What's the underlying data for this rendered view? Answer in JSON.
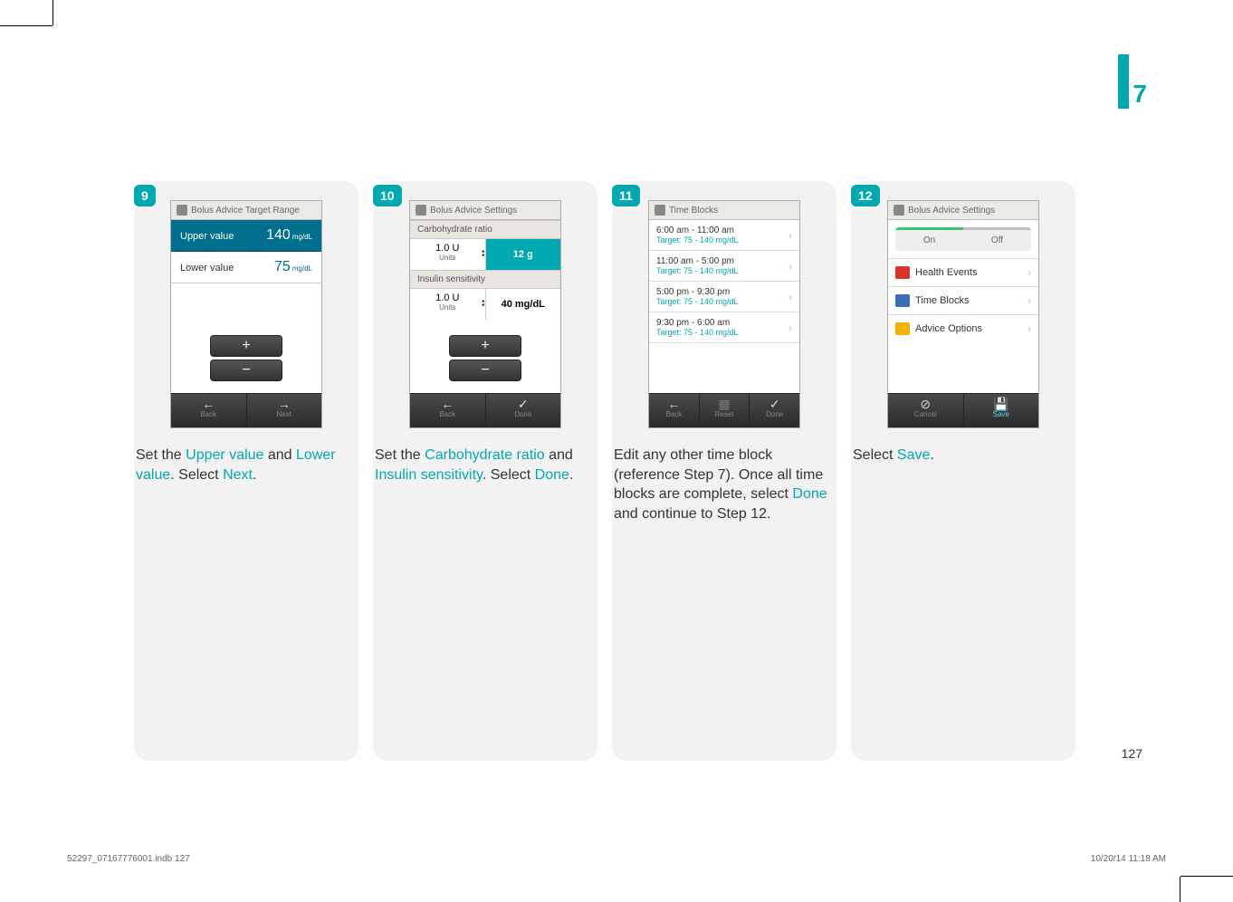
{
  "chapter": "7",
  "page_number": "127",
  "footer": {
    "file": "52297_07167776001.indb   127",
    "stamp": "10/20/14   11:18 AM"
  },
  "accent_color": "#00a8b0",
  "step9": {
    "badge": "9",
    "title": "Bolus Advice Target Range",
    "upper_label": "Upper value",
    "upper_value": "140",
    "lower_label": "Lower value",
    "lower_value": "75",
    "unit": "mg/dL",
    "back": "Back",
    "next": "Next",
    "instr_pre1": "Set the ",
    "instr_hl1": "Upper value",
    "instr_mid": " and ",
    "instr_hl2": "Lower value",
    "instr_post": ". Select ",
    "instr_hl3": "Next",
    "instr_end": "."
  },
  "step10": {
    "badge": "10",
    "title": "Bolus Advice Settings",
    "carb_label": "Carbohydrate ratio",
    "carb_u": "1.0 U",
    "carb_units": "Units",
    "carb_val": "12 g",
    "ins_label": "Insulin sensitivity",
    "ins_u": "1.0 U",
    "ins_units": "Units",
    "ins_val": "40 mg/dL",
    "back": "Back",
    "done": "Done",
    "instr_pre": "Set the ",
    "instr_hl1": "Carbohydrate ratio",
    "instr_mid": " and ",
    "instr_hl2": "Insulin sensitivity",
    "instr_post": ". Select ",
    "instr_hl3": "Done",
    "instr_end": "."
  },
  "step11": {
    "badge": "11",
    "title": "Time Blocks",
    "rows": [
      {
        "time": "6:00 am - 11:00 am",
        "target": "Target: 75 - 140 mg/dL"
      },
      {
        "time": "11:00 am - 5:00 pm",
        "target": "Target: 75 - 140 mg/dL"
      },
      {
        "time": "5:00 pm - 9:30 pm",
        "target": "Target: 75 - 140 mg/dL"
      },
      {
        "time": "9:30 pm - 6:00 am",
        "target": "Target: 75 - 140 mg/dL"
      }
    ],
    "back": "Back",
    "reset": "Reset",
    "done": "Done",
    "instr_1": "Edit any other time block (reference Step 7). Once all time blocks are complete, select ",
    "instr_hl": "Done",
    "instr_2": " and continue to Step 12."
  },
  "step12": {
    "badge": "12",
    "title": "Bolus Advice Settings",
    "on": "On",
    "off": "Off",
    "m1": "Health Events",
    "m2": "Time Blocks",
    "m3": "Advice Options",
    "cancel": "Cancel",
    "save": "Save",
    "instr_pre": "Select ",
    "instr_hl": "Save",
    "instr_end": "."
  }
}
